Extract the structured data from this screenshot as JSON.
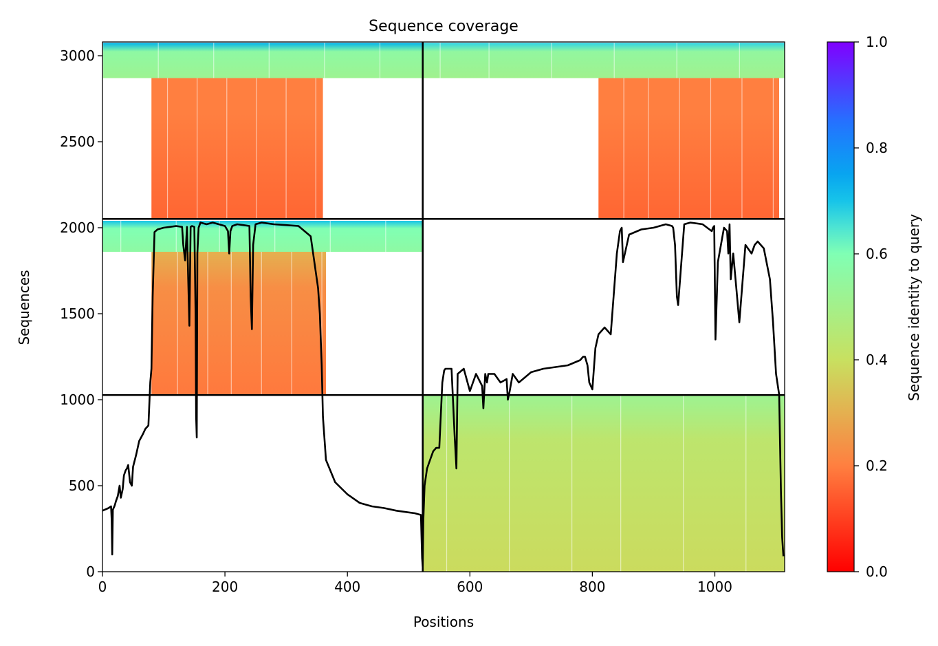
{
  "chart_data": {
    "type": "heatmap",
    "title": "Sequence coverage",
    "xlabel": "Positions",
    "ylabel": "Sequences",
    "xlim": [
      0,
      1114
    ],
    "ylim": [
      0,
      3080
    ],
    "xticks": [
      "0",
      "200",
      "400",
      "600",
      "800",
      "1000"
    ],
    "xtick_values": [
      0,
      200,
      400,
      600,
      800,
      1000
    ],
    "yticks": [
      "0",
      "500",
      "1000",
      "1500",
      "2000",
      "2500",
      "3000"
    ],
    "ytick_values": [
      0,
      500,
      1000,
      1500,
      2000,
      2500,
      3000
    ],
    "grid": false,
    "chain_breaks_x": [
      523
    ],
    "chain_breaks_y": [
      1027,
      2051
    ],
    "colorbar": {
      "label": "Sequence identity to query",
      "range": [
        0,
        1
      ],
      "ticks": [
        "0.0",
        "0.2",
        "0.4",
        "0.6",
        "0.8",
        "1.0"
      ],
      "tick_values": [
        0,
        0.2,
        0.4,
        0.6,
        0.8,
        1.0
      ],
      "colormap": "rainbow_r",
      "colors": [
        "#ff0000",
        "#ff7f40",
        "#c8e060",
        "#80ffb4",
        "#2ed4e6",
        "#00b4eb",
        "#1f78ff",
        "#8000ff"
      ]
    },
    "blocks": [
      {
        "x": [
          0,
          523
        ],
        "y": [
          2870,
          3075
        ],
        "identity": 0.56,
        "note_top_identity": 0.72
      },
      {
        "x": [
          80,
          360
        ],
        "y": [
          2050,
          2870
        ],
        "identity": 0.2
      },
      {
        "x": [
          523,
          1114
        ],
        "y": [
          2870,
          3075
        ],
        "identity": 0.55,
        "note_top_identity": 0.68
      },
      {
        "x": [
          810,
          1105
        ],
        "y": [
          2050,
          2870
        ],
        "identity": 0.2
      },
      {
        "x": [
          0,
          523
        ],
        "y": [
          1860,
          2040
        ],
        "identity": 0.6,
        "note_top_identity": 0.7
      },
      {
        "x": [
          80,
          365
        ],
        "y": [
          1030,
          1860
        ],
        "identity": 0.23,
        "note_top_identity": 0.3
      },
      {
        "x": [
          523,
          1114
        ],
        "y": [
          0,
          1027
        ],
        "identity": 0.43,
        "note_top_identity": 0.52
      }
    ],
    "coverage": {
      "name": "coverage",
      "x": [
        0,
        10,
        14,
        15,
        16,
        17,
        20,
        22,
        25,
        28,
        30,
        33,
        35,
        38,
        40,
        42,
        45,
        48,
        50,
        55,
        60,
        63,
        66,
        70,
        75,
        78,
        80,
        82,
        85,
        90,
        100,
        110,
        120,
        130,
        132,
        135,
        138,
        140,
        142,
        144,
        146,
        150,
        152,
        153,
        154,
        155,
        157,
        160,
        170,
        180,
        190,
        200,
        205,
        207,
        209,
        212,
        220,
        230,
        240,
        242,
        244,
        246,
        250,
        260,
        280,
        300,
        320,
        340,
        350,
        352,
        355,
        358,
        360,
        365,
        380,
        400,
        420,
        440,
        460,
        480,
        500,
        510,
        520,
        522,
        523,
        524,
        526,
        530,
        535,
        540,
        545,
        550,
        555,
        558,
        560,
        570,
        575,
        578,
        580,
        590,
        600,
        610,
        620,
        622,
        625,
        628,
        630,
        640,
        650,
        660,
        662,
        665,
        670,
        680,
        700,
        720,
        740,
        760,
        780,
        785,
        788,
        792,
        795,
        800,
        805,
        810,
        815,
        820,
        830,
        840,
        845,
        848,
        850,
        860,
        880,
        900,
        920,
        930,
        932,
        935,
        938,
        940,
        950,
        960,
        980,
        995,
        997,
        999,
        1001,
        1005,
        1015,
        1020,
        1022,
        1024,
        1026,
        1030,
        1035,
        1040,
        1050,
        1060,
        1065,
        1070,
        1080,
        1090,
        1095,
        1100,
        1105,
        1108,
        1110,
        1112,
        1114
      ],
      "y": [
        355,
        370,
        380,
        300,
        100,
        360,
        385,
        410,
        440,
        500,
        430,
        480,
        560,
        590,
        600,
        620,
        520,
        500,
        610,
        680,
        760,
        780,
        800,
        830,
        850,
        1100,
        1180,
        1600,
        1975,
        1990,
        2000,
        2005,
        2010,
        2005,
        1900,
        1810,
        2005,
        1700,
        1430,
        2005,
        2010,
        2005,
        1500,
        900,
        780,
        1850,
        2000,
        2030,
        2020,
        2030,
        2020,
        2010,
        1980,
        1850,
        1980,
        2010,
        2020,
        2015,
        2010,
        1600,
        1410,
        1900,
        2020,
        2030,
        2020,
        2015,
        2010,
        1950,
        1700,
        1650,
        1500,
        1200,
        900,
        650,
        520,
        450,
        400,
        380,
        370,
        355,
        345,
        340,
        330,
        80,
        30,
        300,
        500,
        600,
        650,
        700,
        720,
        720,
        1100,
        1170,
        1180,
        1180,
        800,
        600,
        1150,
        1180,
        1050,
        1150,
        1080,
        950,
        1150,
        1100,
        1150,
        1150,
        1100,
        1120,
        1000,
        1050,
        1150,
        1100,
        1160,
        1180,
        1190,
        1200,
        1230,
        1250,
        1250,
        1200,
        1100,
        1060,
        1300,
        1380,
        1400,
        1420,
        1380,
        1850,
        1980,
        2000,
        1800,
        1960,
        1990,
        2000,
        2020,
        2010,
        2000,
        1900,
        1600,
        1550,
        2020,
        2030,
        2020,
        1980,
        2000,
        2010,
        1350,
        1800,
        2000,
        1980,
        1850,
        2020,
        1700,
        1850,
        1650,
        1450,
        1900,
        1850,
        1900,
        1920,
        1880,
        1700,
        1450,
        1150,
        1030,
        450,
        200,
        90
      ]
    }
  }
}
